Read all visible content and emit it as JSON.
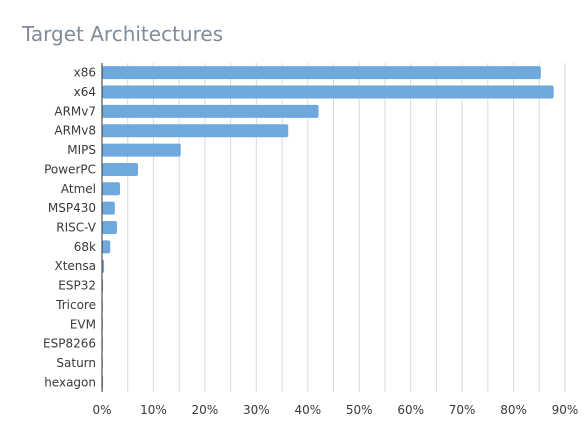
{
  "chart_data": {
    "type": "bar",
    "orientation": "horizontal",
    "title": "Target Architectures",
    "xlabel": "",
    "ylabel": "",
    "categories": [
      "x86",
      "x64",
      "ARMv7",
      "ARMv8",
      "MIPS",
      "PowerPC",
      "Atmel",
      "MSP430",
      "RISC-V",
      "68k",
      "Xtensa",
      "ESP32",
      "Tricore",
      "EVM",
      "ESP8266",
      "Saturn",
      "hexagon"
    ],
    "values": [
      85.3,
      87.8,
      42.1,
      36.2,
      15.3,
      7.0,
      3.5,
      2.5,
      2.9,
      1.6,
      0.4,
      0.2,
      0.1,
      0.1,
      0.1,
      0.1,
      0.2
    ],
    "xlim": [
      0,
      90
    ],
    "xticks": [
      0,
      10,
      20,
      30,
      40,
      50,
      60,
      70,
      80,
      90
    ],
    "tick_suffix": "%",
    "grid": true,
    "legend": "none",
    "colors": {
      "bar": "#6fa8dc",
      "bar_stroke": "#5a93c9",
      "title": "#7f8c99",
      "grid": "#d9d9d9"
    }
  }
}
